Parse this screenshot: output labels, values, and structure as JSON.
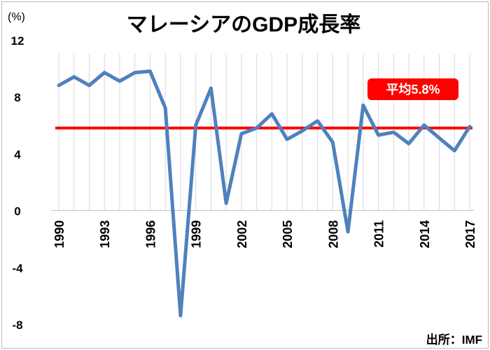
{
  "chart_data": {
    "type": "line",
    "title": "マレーシアのGDP成長率",
    "unit_label": "(%)",
    "source": "出所：IMF",
    "x": [
      1990,
      1991,
      1992,
      1993,
      1994,
      1995,
      1996,
      1997,
      1998,
      1999,
      2000,
      2001,
      2002,
      2003,
      2004,
      2005,
      2006,
      2007,
      2008,
      2009,
      2010,
      2011,
      2012,
      2013,
      2014,
      2015,
      2016,
      2017
    ],
    "x_tick_labels": [
      "1990",
      "1993",
      "1996",
      "1999",
      "2002",
      "2005",
      "2008",
      "2011",
      "2014",
      "2017"
    ],
    "y_tick_labels": [
      "12",
      "8",
      "4",
      "0",
      "-4",
      "-8"
    ],
    "ylim": [
      -8,
      12
    ],
    "grid": "vertical",
    "series": [
      {
        "values": [
          8.8,
          9.4,
          8.8,
          9.7,
          9.1,
          9.7,
          9.8,
          7.2,
          -7.4,
          6.0,
          8.6,
          0.5,
          5.4,
          5.8,
          6.8,
          5.0,
          5.6,
          6.3,
          4.8,
          -1.5,
          7.4,
          5.3,
          5.5,
          4.7,
          6.0,
          5.1,
          4.2,
          5.9
        ],
        "color": "#4f81bd"
      }
    ],
    "average": {
      "value": 5.8,
      "label": "平均5.8%",
      "color": "#ff0000"
    }
  }
}
